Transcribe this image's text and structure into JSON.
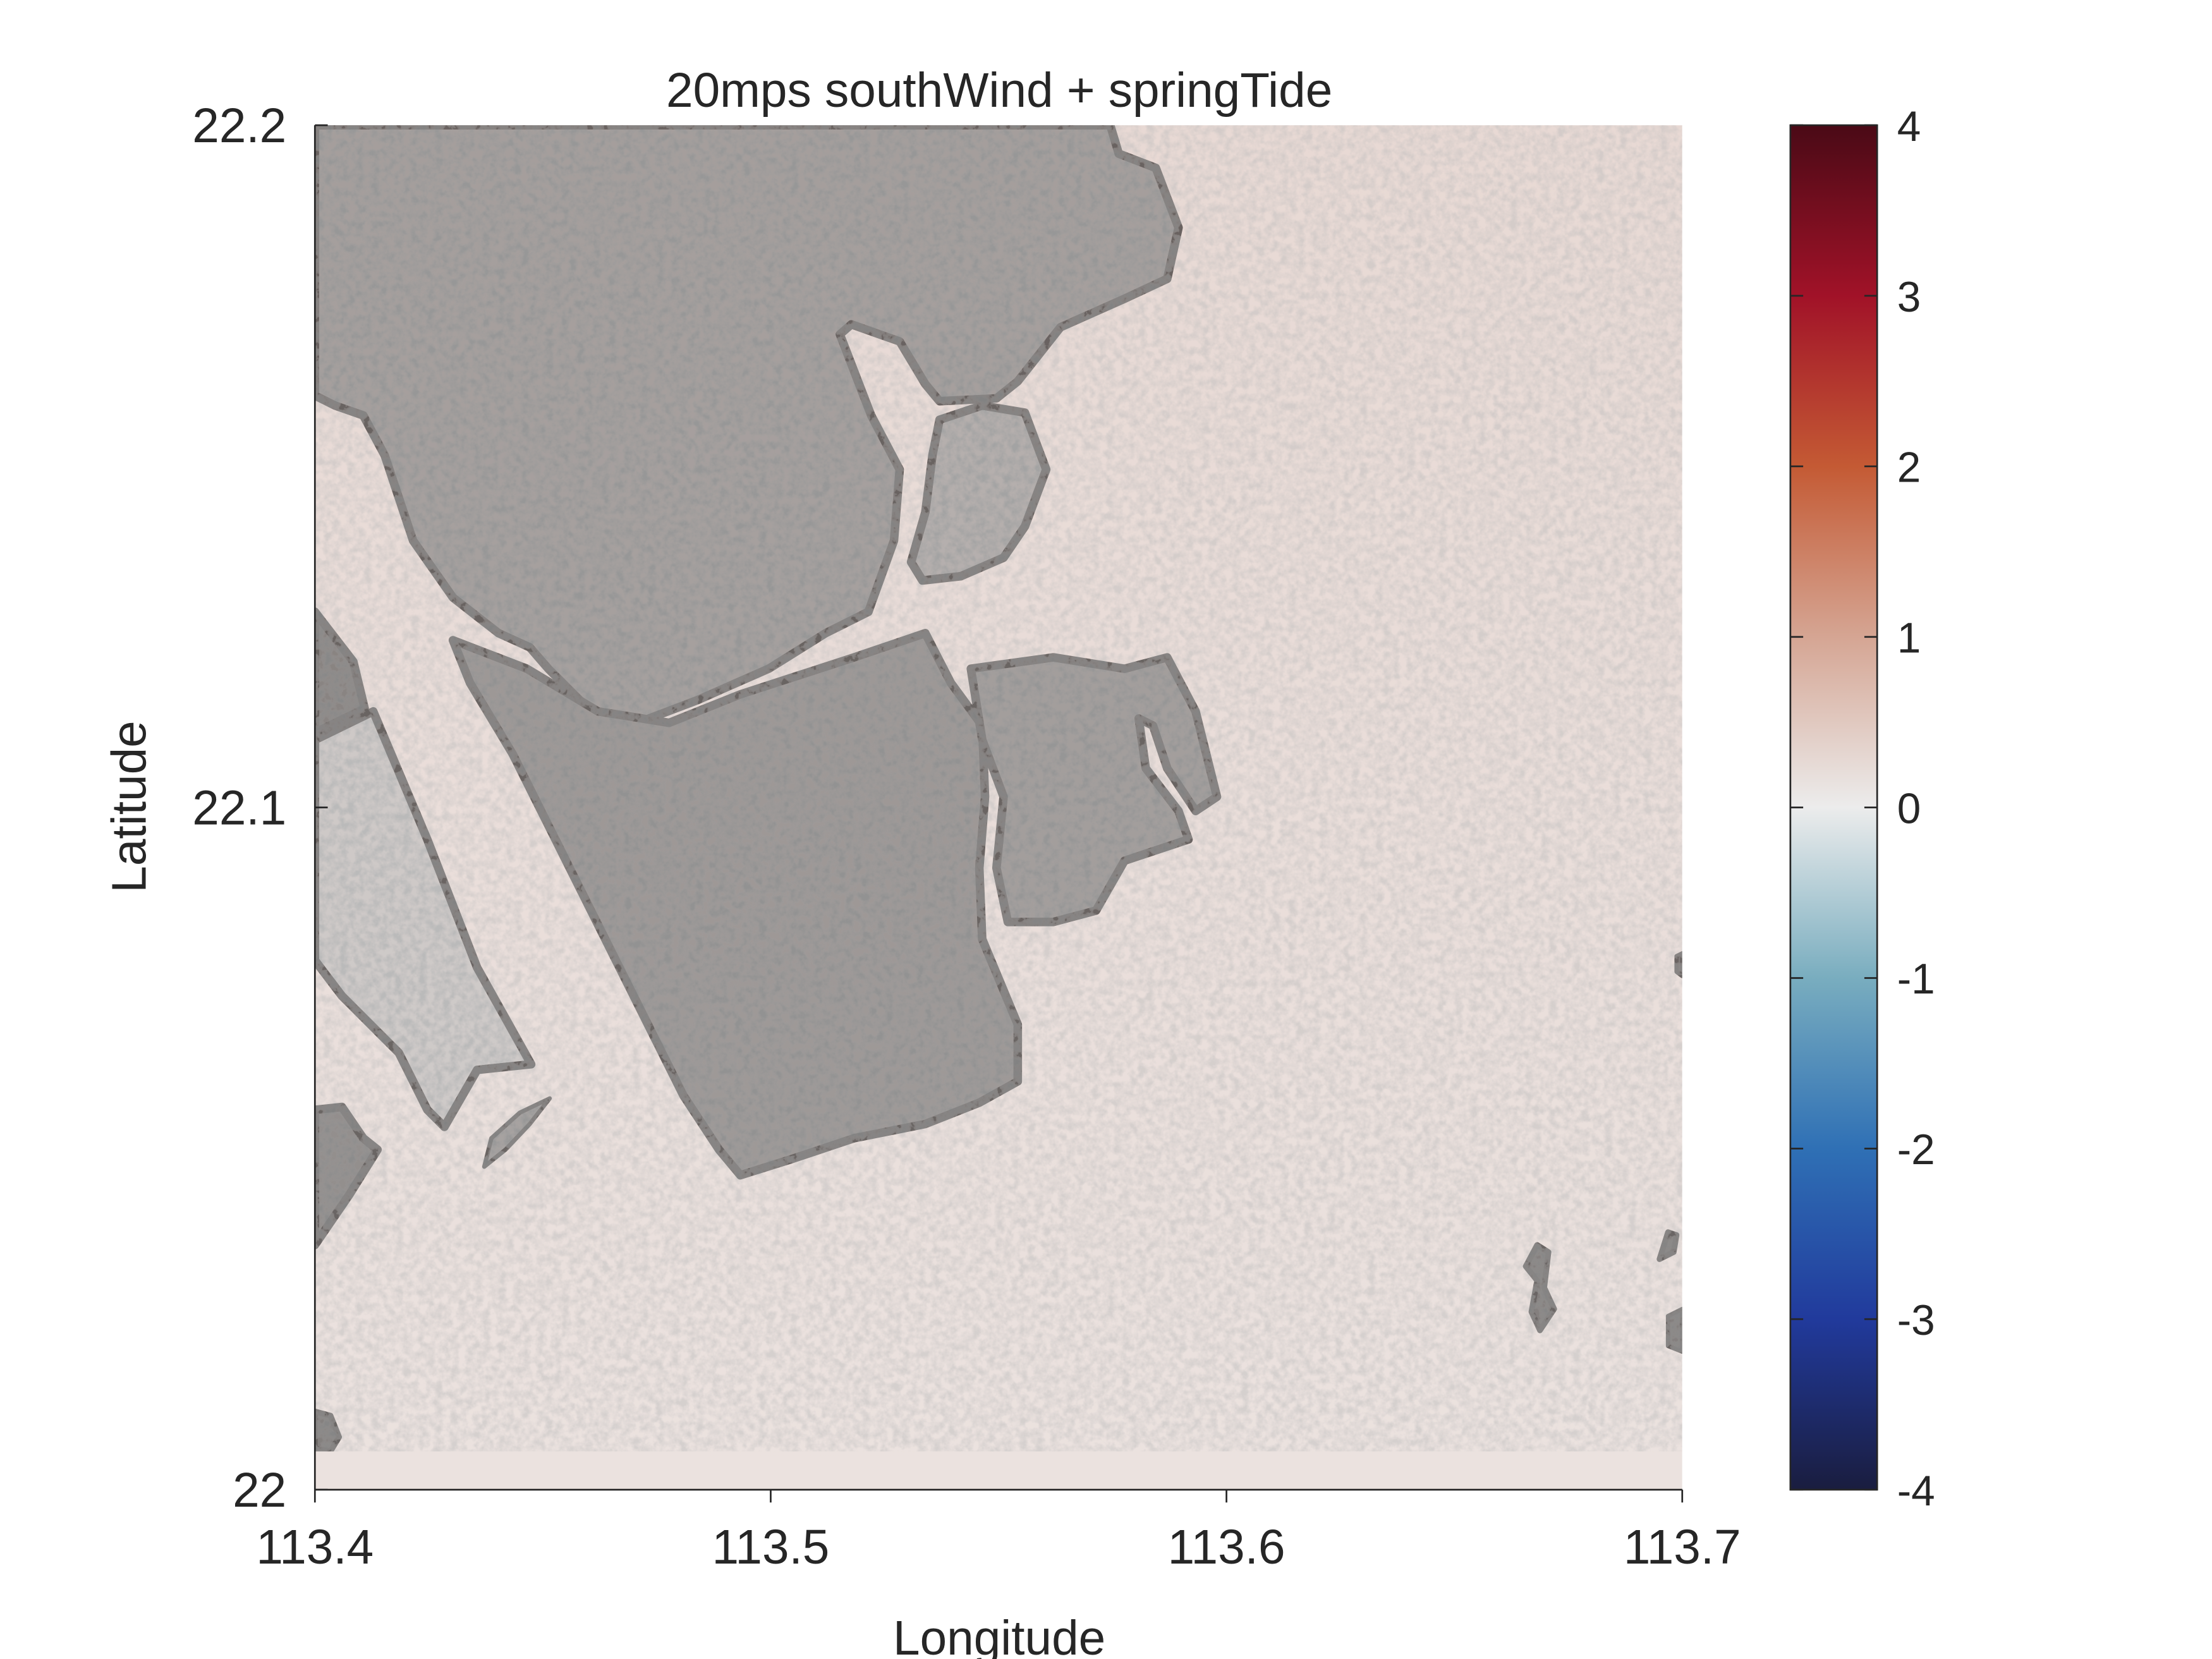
{
  "title": "20mps southWind + springTide",
  "xlabel": "Longitude",
  "ylabel": "Latitude",
  "colors": {
    "sea": "#e9dcd8",
    "land_shoreline": "#000000",
    "axis": "#262626"
  },
  "chart_data": {
    "type": "heatmap",
    "title": "20mps southWind + springTide",
    "xlabel": "Longitude",
    "ylabel": "Latitude",
    "xlim": [
      113.4,
      113.7
    ],
    "ylim": [
      22.0,
      22.2
    ],
    "x_ticks": [
      {
        "value": 113.4,
        "label": "113.4"
      },
      {
        "value": 113.5,
        "label": "113.5"
      },
      {
        "value": 113.6,
        "label": "113.6"
      },
      {
        "value": 113.7,
        "label": "113.7"
      }
    ],
    "y_ticks": [
      {
        "value": 22.0,
        "label": "22"
      },
      {
        "value": 22.1,
        "label": "22.1"
      },
      {
        "value": 22.2,
        "label": "22.2"
      }
    ],
    "colorbar": {
      "range": [
        -4,
        4
      ],
      "colormap": "diverging blue-white-red",
      "stops": [
        {
          "value": -4,
          "color": "#1a1d3f"
        },
        {
          "value": -3,
          "color": "#213a9c"
        },
        {
          "value": -2,
          "color": "#2f70b5"
        },
        {
          "value": -1,
          "color": "#79adbf"
        },
        {
          "value": 0,
          "color": "#ececec"
        },
        {
          "value": 1,
          "color": "#d5a593"
        },
        {
          "value": 2,
          "color": "#c45a34"
        },
        {
          "value": 3,
          "color": "#a11228"
        },
        {
          "value": 4,
          "color": "#4a0a16"
        }
      ],
      "ticks": [
        {
          "value": 4,
          "label": "4"
        },
        {
          "value": 3,
          "label": "3"
        },
        {
          "value": 2,
          "label": "2"
        },
        {
          "value": 1,
          "label": "1"
        },
        {
          "value": 0,
          "label": "0"
        },
        {
          "value": -1,
          "label": "-1"
        },
        {
          "value": -2,
          "label": "-2"
        },
        {
          "value": -3,
          "label": "-3"
        },
        {
          "value": -4,
          "label": "-4"
        }
      ]
    },
    "field_value_approx": 0.25,
    "grid": false
  }
}
